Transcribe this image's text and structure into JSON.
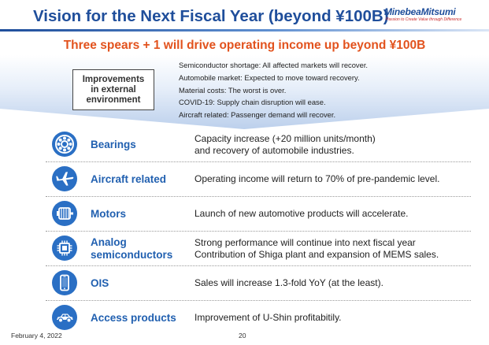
{
  "slide": {
    "title": "Vision for the Next Fiscal Year (beyond ¥100B)",
    "logo": {
      "name": "MinebeaMitsumi",
      "tagline": "Passion to Create Value through Difference"
    },
    "headline": "Three spears + 1 will drive operating income up beyond ¥100B"
  },
  "environment": {
    "box_lines": [
      "Improvements",
      "in external",
      "environment"
    ],
    "items": [
      "Semiconductor shortage: All affected markets will recover.",
      "Automobile market: Expected to move toward recovery.",
      "Material costs: The worst is over.",
      "COVID-19: Supply chain disruption will ease.",
      "Aircraft related: Passenger demand will recover."
    ]
  },
  "segments": [
    {
      "icon": "bearing-icon",
      "name_lines": [
        "Bearings"
      ],
      "desc_lines": [
        "Capacity increase (+20 million units/month)",
        "and recovery of automobile industries."
      ]
    },
    {
      "icon": "airplane-icon",
      "name_lines": [
        "Aircraft related"
      ],
      "desc_lines": [
        "Operating income will return to 70% of pre-pandemic level."
      ]
    },
    {
      "icon": "motor-icon",
      "name_lines": [
        "Motors"
      ],
      "desc_lines": [
        "Launch of new automotive products will accelerate."
      ]
    },
    {
      "icon": "chip-icon",
      "name_lines": [
        "Analog",
        "semiconductors"
      ],
      "desc_lines": [
        "Strong performance will continue into next fiscal year",
        "Contribution of Shiga plant and expansion of MEMS sales."
      ]
    },
    {
      "icon": "smartphone-icon",
      "name_lines": [
        "OIS"
      ],
      "desc_lines": [
        "Sales will increase 1.3-fold YoY (at the least)."
      ]
    },
    {
      "icon": "car-icon",
      "name_lines": [
        "Access products"
      ],
      "desc_lines": [
        "Improvement of U-Shin profitabitily."
      ]
    }
  ],
  "footer": {
    "date": "February 4, 2022",
    "page": "20"
  },
  "colors": {
    "title": "#1f4e9b",
    "headline": "#e2521d",
    "segment_name": "#2160b0",
    "icon_circle": "#2a6fc4"
  }
}
